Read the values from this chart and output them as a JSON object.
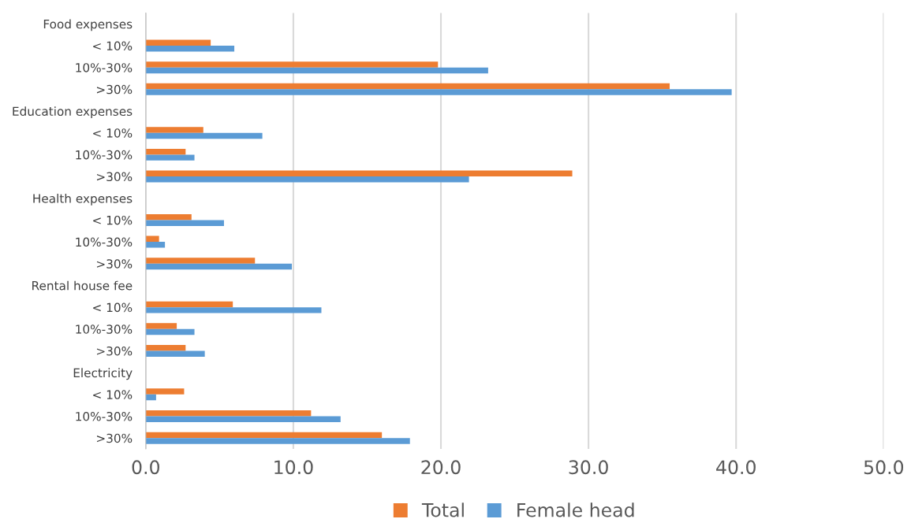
{
  "chart_data": {
    "type": "bar",
    "orientation": "horizontal",
    "categories": [
      "Food expenses",
      "< 10%",
      "10%-30%",
      ">30%",
      "Education expenses",
      "< 10%",
      "10%-30%",
      ">30%",
      "Health expenses",
      "< 10%",
      "10%-30%",
      ">30%",
      "Rental house fee",
      "< 10%",
      "10%-30%",
      ">30%",
      "Electricity",
      "< 10%",
      "10%-30%",
      ">30%"
    ],
    "series": [
      {
        "name": "Total",
        "color": "#ed7d31",
        "values": [
          null,
          4.4,
          19.8,
          35.5,
          null,
          3.9,
          2.7,
          28.9,
          null,
          3.1,
          0.9,
          7.4,
          null,
          5.9,
          2.1,
          2.7,
          null,
          2.6,
          11.2,
          16.0
        ]
      },
      {
        "name": "Female head",
        "color": "#5b9bd5",
        "values": [
          null,
          6.0,
          23.2,
          39.7,
          null,
          7.9,
          3.3,
          21.9,
          null,
          5.3,
          1.3,
          9.9,
          null,
          11.9,
          3.3,
          4.0,
          null,
          0.7,
          13.2,
          17.9
        ]
      }
    ],
    "xlim": [
      0,
      50
    ],
    "xticks": [
      {
        "value": 0,
        "label": "0.0"
      },
      {
        "value": 10,
        "label": "10.0"
      },
      {
        "value": 20,
        "label": "20.0"
      },
      {
        "value": 30,
        "label": "30.0"
      },
      {
        "value": 40,
        "label": "40.0"
      },
      {
        "value": 50,
        "label": "50.0"
      }
    ],
    "grid": "x",
    "legend": "bottom"
  }
}
